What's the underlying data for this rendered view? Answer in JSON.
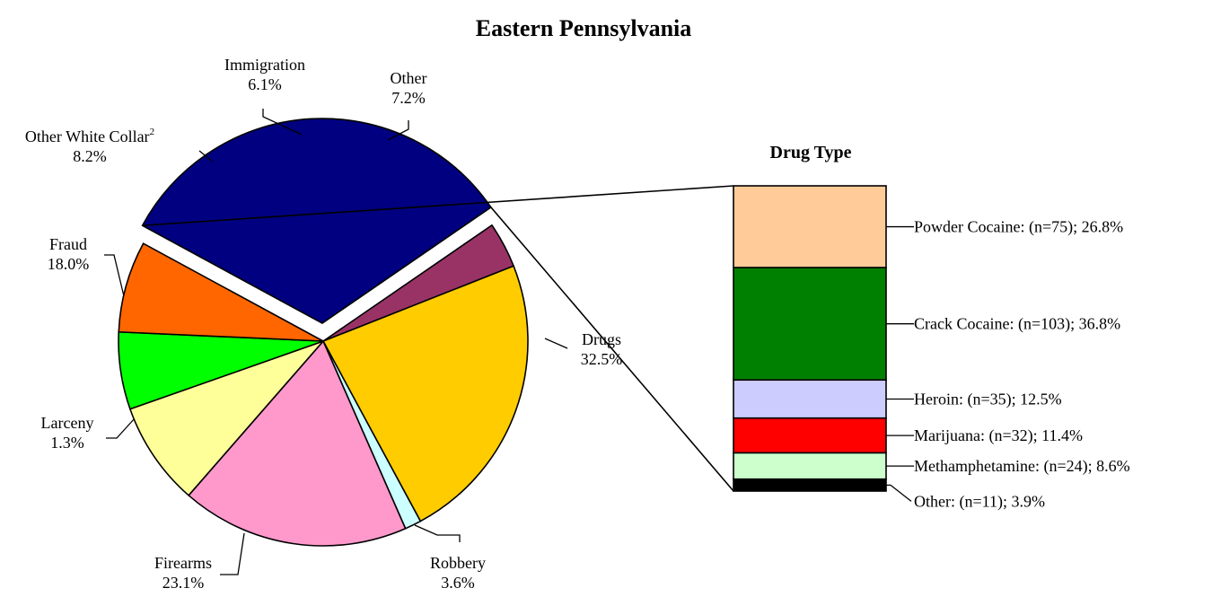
{
  "chart_data": [
    {
      "type": "pie",
      "title": "Eastern Pennsylvania",
      "slices": [
        {
          "label": "Drugs",
          "value": 32.5,
          "value_label": "32.5%",
          "color": "#000080",
          "exploded": true
        },
        {
          "label": "Robbery",
          "value": 3.6,
          "value_label": "3.6%",
          "color": "#993366"
        },
        {
          "label": "Firearms",
          "value": 23.1,
          "value_label": "23.1%",
          "color": "#FFCC00"
        },
        {
          "label": "Larceny",
          "value": 1.3,
          "value_label": "1.3%",
          "color": "#CCFFFF"
        },
        {
          "label": "Fraud",
          "value": 18.0,
          "value_label": "18.0%",
          "color": "#FF99CC"
        },
        {
          "label": "Other White Collar",
          "footnote": "2",
          "value": 8.2,
          "value_label": "8.2%",
          "color": "#FFFF99"
        },
        {
          "label": "Immigration",
          "value": 6.1,
          "value_label": "6.1%",
          "color": "#00FF00"
        },
        {
          "label": "Other",
          "value": 7.2,
          "value_label": "7.2%",
          "color": "#FF6600"
        }
      ]
    },
    {
      "type": "bar",
      "stacked": true,
      "title": "Drug Type",
      "segments": [
        {
          "label": "Powder Cocaine: (n=75); 26.8%",
          "value": 26.8,
          "color": "#FFCC99"
        },
        {
          "label": "Crack Cocaine: (n=103); 36.8%",
          "value": 36.8,
          "color": "#008000"
        },
        {
          "label": "Heroin: (n=35); 12.5%",
          "value": 12.5,
          "color": "#CCCCFF"
        },
        {
          "label": "Marijuana: (n=32); 11.4%",
          "value": 11.4,
          "color": "#FF0000"
        },
        {
          "label": "Methamphetamine: (n=24); 8.6%",
          "value": 8.6,
          "color": "#CCFFCC"
        },
        {
          "label": "Other: (n=11); 3.9%",
          "value": 3.9,
          "color": "#000000"
        }
      ]
    }
  ]
}
